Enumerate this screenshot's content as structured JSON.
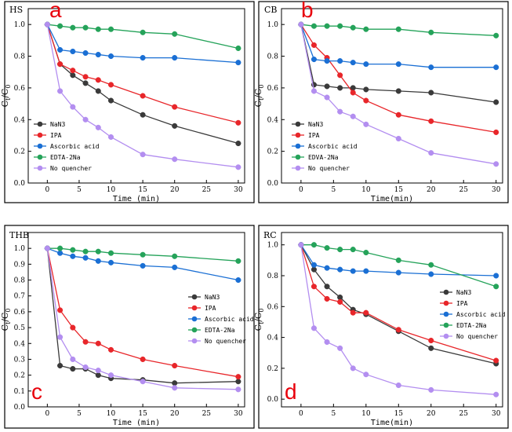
{
  "colors": {
    "NaN3": "#3a3a3a",
    "IPA": "#e8262a",
    "Ascorbic acid": "#1a6fd4",
    "EDTA-2Na": "#25a35a",
    "No quencher": "#b38ef0",
    "panel_label": "#e8000b"
  },
  "chart_data": [
    {
      "id": "a",
      "type": "line",
      "title": "HS",
      "panel_label": "a",
      "xlabel": "Time (min)",
      "ylabel_main": "C",
      "ylabel_sub1": "t",
      "ylabel_slash": "/C",
      "ylabel_sub2": "0",
      "xlim": [
        -3,
        31
      ],
      "ylim": [
        0.0,
        1.1
      ],
      "xticks": [
        0,
        5,
        10,
        15,
        20,
        25,
        30
      ],
      "yticks": [
        0.0,
        0.2,
        0.4,
        0.6,
        0.8,
        1.0
      ],
      "yfmt": 1,
      "x": [
        0,
        2,
        4,
        6,
        8,
        10,
        15,
        20,
        30
      ],
      "series": [
        {
          "name": "NaN3",
          "values": [
            1.0,
            0.75,
            0.68,
            0.63,
            0.58,
            0.52,
            0.43,
            0.36,
            0.25
          ]
        },
        {
          "name": "IPA",
          "values": [
            1.0,
            0.75,
            0.71,
            0.67,
            0.65,
            0.62,
            0.55,
            0.48,
            0.38
          ]
        },
        {
          "name": "Ascorbic acid",
          "values": [
            1.0,
            0.84,
            0.83,
            0.82,
            0.81,
            0.8,
            0.79,
            0.79,
            0.76
          ]
        },
        {
          "name": "EDTA-2Na",
          "values": [
            1.0,
            0.99,
            0.98,
            0.98,
            0.97,
            0.97,
            0.95,
            0.94,
            0.85
          ]
        },
        {
          "name": "No quencher",
          "values": [
            1.0,
            0.58,
            0.48,
            0.4,
            0.35,
            0.29,
            0.18,
            0.15,
            0.1
          ]
        }
      ],
      "legend": [
        "NaN3",
        "IPA",
        "Ascorbic acid",
        "EDTA-2Na",
        "No quencher"
      ],
      "legend_position": "bottom-left"
    },
    {
      "id": "b",
      "type": "line",
      "title": "CB",
      "panel_label": "b",
      "xlabel": "Time(min)",
      "ylabel_main": "C",
      "ylabel_sub1": "t",
      "ylabel_slash": "/C",
      "ylabel_sub2": "0",
      "xlim": [
        -3,
        31
      ],
      "ylim": [
        0.0,
        1.1
      ],
      "xticks": [
        0,
        5,
        10,
        15,
        20,
        25,
        30
      ],
      "yticks": [
        0.0,
        0.2,
        0.4,
        0.6,
        0.8,
        1.0
      ],
      "yfmt": 1,
      "x": [
        0,
        2,
        4,
        6,
        8,
        10,
        15,
        20,
        30
      ],
      "series": [
        {
          "name": "NaN3",
          "values": [
            1.0,
            0.62,
            0.61,
            0.6,
            0.6,
            0.59,
            0.58,
            0.57,
            0.51
          ]
        },
        {
          "name": "IPA",
          "values": [
            1.0,
            0.87,
            0.79,
            0.68,
            0.57,
            0.52,
            0.43,
            0.39,
            0.32
          ]
        },
        {
          "name": "Ascorbic acid",
          "values": [
            1.0,
            0.78,
            0.77,
            0.77,
            0.76,
            0.75,
            0.75,
            0.73,
            0.73
          ]
        },
        {
          "name": "EDVA-2Na",
          "values": [
            1.0,
            0.99,
            0.99,
            0.99,
            0.98,
            0.97,
            0.97,
            0.95,
            0.93
          ]
        },
        {
          "name": "No quencher",
          "values": [
            1.0,
            0.58,
            0.54,
            0.45,
            0.42,
            0.37,
            0.28,
            0.19,
            0.12
          ]
        }
      ],
      "legend": [
        "NaN3",
        "IPA",
        "Ascorbic acid",
        "EDVA-2Na",
        "No quencher"
      ],
      "legend_position": "bottom-left"
    },
    {
      "id": "c",
      "type": "line",
      "title": "THB",
      "panel_label": "c",
      "xlabel": "Time (min)",
      "ylabel_main": "C",
      "ylabel_sub1": "t",
      "ylabel_slash": "/C",
      "ylabel_sub2": "0",
      "xlim": [
        -3,
        31
      ],
      "ylim": [
        0.0,
        1.1
      ],
      "xticks": [
        0,
        5,
        10,
        15,
        20,
        25,
        30
      ],
      "yticks": [
        0.0,
        0.1,
        0.2,
        0.3,
        0.4,
        0.5,
        0.6,
        0.7,
        0.8,
        0.9,
        1.0
      ],
      "yfmt": 1,
      "x": [
        0,
        2,
        4,
        6,
        8,
        10,
        15,
        20,
        30
      ],
      "series": [
        {
          "name": "NaN3",
          "values": [
            1.0,
            0.26,
            0.24,
            0.24,
            0.2,
            0.18,
            0.17,
            0.15,
            0.16
          ]
        },
        {
          "name": "IPA",
          "values": [
            1.0,
            0.61,
            0.5,
            0.41,
            0.4,
            0.36,
            0.3,
            0.26,
            0.19
          ]
        },
        {
          "name": "Ascorbic acid",
          "values": [
            1.0,
            0.97,
            0.95,
            0.94,
            0.92,
            0.91,
            0.89,
            0.88,
            0.8
          ]
        },
        {
          "name": "EDTA-2Na",
          "values": [
            1.0,
            1.0,
            0.99,
            0.98,
            0.98,
            0.97,
            0.96,
            0.95,
            0.92
          ]
        },
        {
          "name": "No quencher",
          "values": [
            1.0,
            0.44,
            0.3,
            0.25,
            0.23,
            0.2,
            0.16,
            0.12,
            0.11
          ]
        }
      ],
      "legend": [
        "NaN3",
        "IPA",
        "Ascorbic acid",
        "EDTA-2Na",
        "No quencher"
      ],
      "legend_position": "center-right"
    },
    {
      "id": "d",
      "type": "line",
      "title": "RC",
      "panel_label": "d",
      "xlabel": "Time(min)",
      "ylabel_main": "C",
      "ylabel_sub1": "t",
      "ylabel_slash": "/C",
      "ylabel_sub2": "0",
      "xlim": [
        -3,
        31
      ],
      "ylim": [
        -0.05,
        1.08
      ],
      "xticks": [
        0,
        5,
        10,
        15,
        20,
        25,
        30
      ],
      "yticks": [
        0.0,
        0.2,
        0.4,
        0.6,
        0.8,
        1.0
      ],
      "yfmt": 1,
      "x": [
        0,
        2,
        4,
        6,
        8,
        10,
        15,
        20,
        30
      ],
      "series": [
        {
          "name": "NaN3",
          "values": [
            1.0,
            0.84,
            0.73,
            0.66,
            0.58,
            0.55,
            0.44,
            0.33,
            0.23
          ]
        },
        {
          "name": "IPA",
          "values": [
            1.0,
            0.73,
            0.65,
            0.63,
            0.56,
            0.56,
            0.45,
            0.38,
            0.25
          ]
        },
        {
          "name": "Ascorbic acid",
          "values": [
            1.0,
            0.87,
            0.85,
            0.84,
            0.83,
            0.83,
            0.82,
            0.81,
            0.8
          ]
        },
        {
          "name": "EDTA-2Na",
          "values": [
            1.0,
            1.0,
            0.98,
            0.97,
            0.97,
            0.95,
            0.9,
            0.87,
            0.73
          ]
        },
        {
          "name": "No quencher",
          "values": [
            1.0,
            0.46,
            0.37,
            0.33,
            0.2,
            0.16,
            0.09,
            0.06,
            0.03
          ]
        }
      ],
      "legend": [
        "NaN3",
        "IPA",
        "Ascorbic acid",
        "EDTA-2Na",
        "No quencher"
      ],
      "legend_position": "center-right"
    }
  ]
}
